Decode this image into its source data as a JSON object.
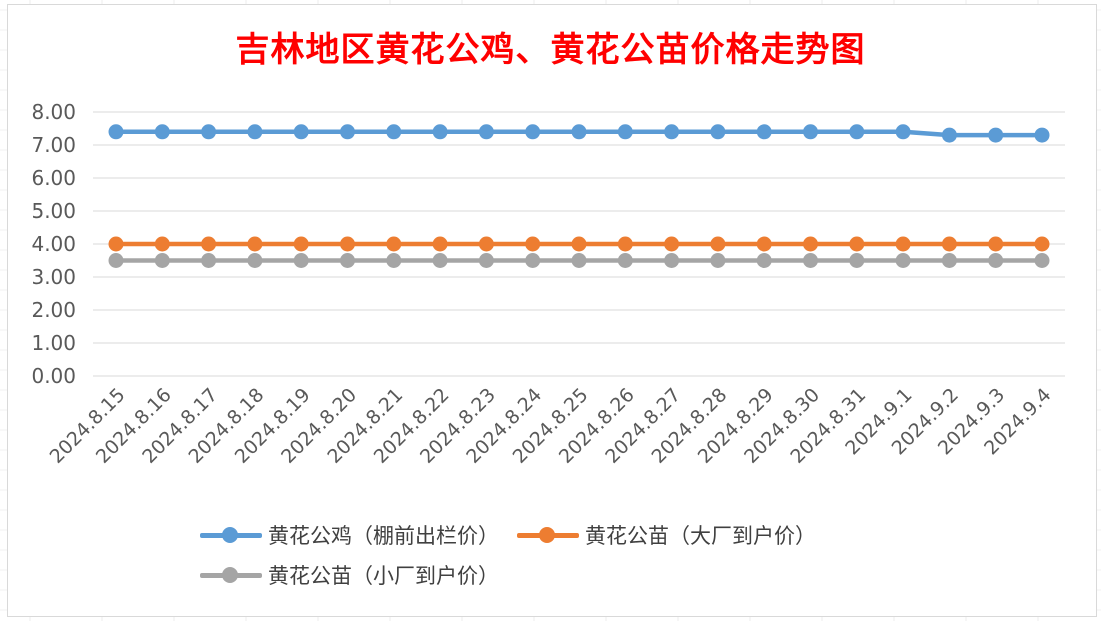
{
  "chart_data": {
    "type": "line",
    "title": "吉林地区黄花公鸡、黄花公苗价格走势图",
    "xlabel": "",
    "ylabel": "",
    "ylim": [
      0,
      8
    ],
    "yticks": [
      "0.00",
      "1.00",
      "2.00",
      "3.00",
      "4.00",
      "5.00",
      "6.00",
      "7.00",
      "8.00"
    ],
    "categories": [
      "2024.8.15",
      "2024.8.16",
      "2024.8.17",
      "2024.8.18",
      "2024.8.19",
      "2024.8.20",
      "2024.8.21",
      "2024.8.22",
      "2024.8.23",
      "2024.8.24",
      "2024.8.25",
      "2024.8.26",
      "2024.8.27",
      "2024.8.28",
      "2024.8.29",
      "2024.8.30",
      "2024.8.31",
      "2024.9.1",
      "2024.9.2",
      "2024.9.3",
      "2024.9.4"
    ],
    "series": [
      {
        "name": "黄花公鸡（棚前出栏价）",
        "color": "#5b9bd5",
        "values": [
          7.4,
          7.4,
          7.4,
          7.4,
          7.4,
          7.4,
          7.4,
          7.4,
          7.4,
          7.4,
          7.4,
          7.4,
          7.4,
          7.4,
          7.4,
          7.4,
          7.4,
          7.4,
          7.3,
          7.3,
          7.3
        ]
      },
      {
        "name": "黄花公苗（大厂到户价）",
        "color": "#ed7d31",
        "values": [
          4.0,
          4.0,
          4.0,
          4.0,
          4.0,
          4.0,
          4.0,
          4.0,
          4.0,
          4.0,
          4.0,
          4.0,
          4.0,
          4.0,
          4.0,
          4.0,
          4.0,
          4.0,
          4.0,
          4.0,
          4.0
        ]
      },
      {
        "name": "黄花公苗（小厂到户价）",
        "color": "#a5a5a5",
        "values": [
          3.5,
          3.5,
          3.5,
          3.5,
          3.5,
          3.5,
          3.5,
          3.5,
          3.5,
          3.5,
          3.5,
          3.5,
          3.5,
          3.5,
          3.5,
          3.5,
          3.5,
          3.5,
          3.5,
          3.5,
          3.5
        ]
      }
    ],
    "grid": true,
    "legend_position": "bottom"
  }
}
